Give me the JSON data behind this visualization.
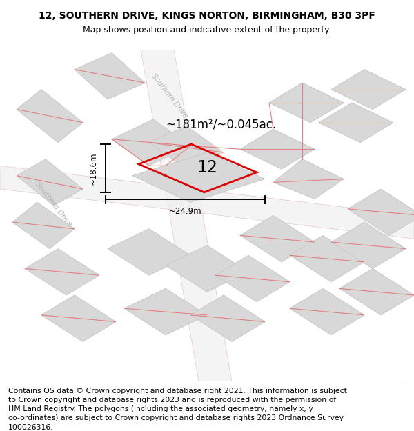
{
  "title": "12, SOUTHERN DRIVE, KINGS NORTON, BIRMINGHAM, B30 3PF",
  "subtitle": "Map shows position and indicative extent of the property.",
  "footer": "Contains OS data © Crown copyright and database right 2021. This information is subject\nto Crown copyright and database rights 2023 and is reproduced with the permission of\nHM Land Registry. The polygons (including the associated geometry, namely x, y\nco-ordinates) are subject to Crown copyright and database rights 2023 Ordnance Survey\n100026316.",
  "title_fontsize": 10,
  "subtitle_fontsize": 9,
  "footer_fontsize": 7.8,
  "map_bg": "#ebebeb",
  "area_label": "~181m²/~0.045ac.",
  "number_label": "12",
  "dim_width": "~24.9m",
  "dim_height": "~18.6m",
  "highlight_color": "#dd0000",
  "highlight_lw": 2.0,
  "road_label1": "Southern Drive",
  "road_label2": "Southern Drive",
  "grey_block_color": "#d8d8d8",
  "grey_block_edge": "#c8c8c8",
  "pink_line_color": "#e08080",
  "road_fill": "#f0f0f0",
  "road_edge": "#e0b0b0"
}
